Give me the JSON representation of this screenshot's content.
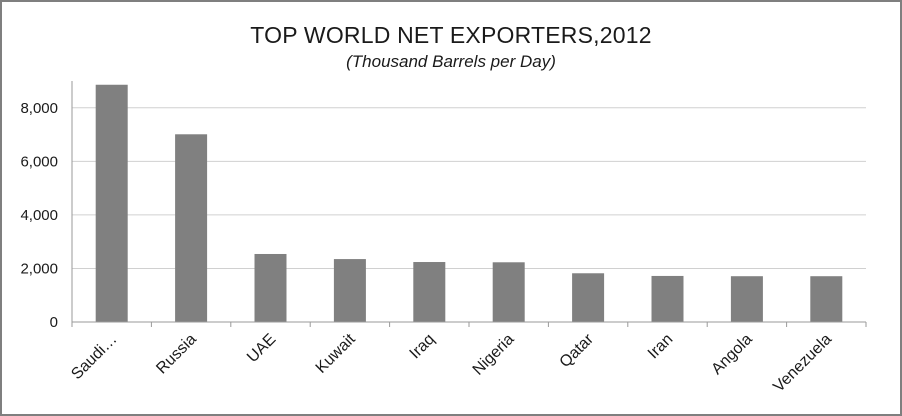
{
  "chart_data": {
    "type": "bar",
    "title": "TOP WORLD NET EXPORTERS,2012",
    "subtitle": "(Thousand Barrels per Day)",
    "categories": [
      "Saudi…",
      "Russia",
      "UAE",
      "Kuwait",
      "Iraq",
      "Nigeria",
      "Qatar",
      "Iran",
      "Angola",
      "Venezuela"
    ],
    "values": [
      8860,
      7010,
      2540,
      2350,
      2240,
      2230,
      1820,
      1720,
      1710,
      1710
    ],
    "ylim": [
      0,
      9000
    ],
    "yticks": [
      0,
      2000,
      4000,
      6000,
      8000
    ],
    "ytick_labels": [
      "0",
      "2,000",
      "4,000",
      "6,000",
      "8,000"
    ],
    "xlabel": "",
    "ylabel": "",
    "grid": true,
    "legend": "none",
    "bar_color": "#808080",
    "grid_color": "#d0d0d0"
  }
}
